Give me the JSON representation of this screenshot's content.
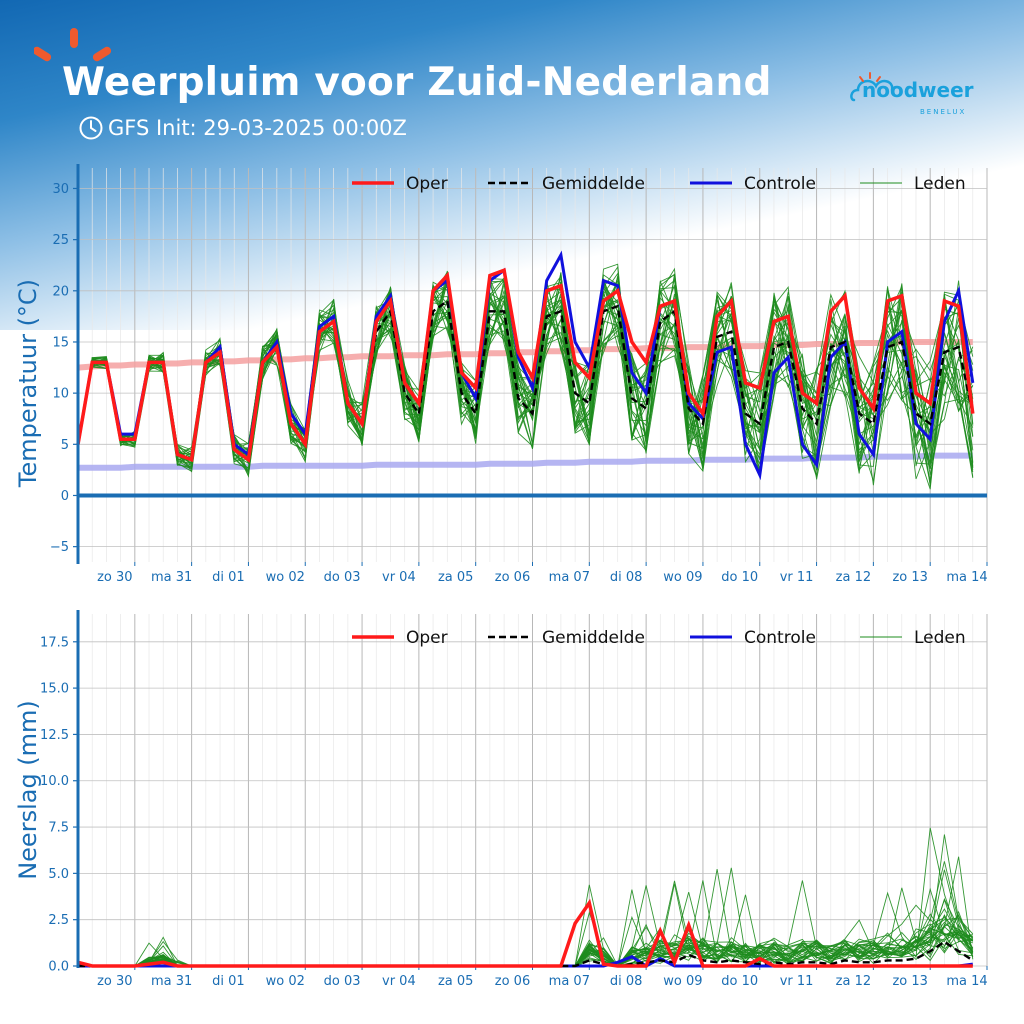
{
  "header": {
    "title": "Weerpluim voor Zuid-Nederland",
    "subtitle": "GFS Init: 29-03-2025 00:00Z",
    "icons": [
      "sun-logo-icon",
      "clock-icon",
      "noodweer-cloud-icon"
    ]
  },
  "brand": {
    "name": "noodweer",
    "sub": "BENELUX"
  },
  "colors": {
    "oper": "#ff1a1a",
    "mean": "#000000",
    "control": "#1010dd",
    "members": "#1e8c1e",
    "climate_max": "#f4a0a0",
    "climate_min": "#a8a8f0",
    "axis": "#1a6db3"
  },
  "chart_data": [
    {
      "type": "line",
      "ylabel": "Temperatuur (°C)",
      "ylim": [
        -6.5,
        32
      ],
      "yticks": [
        -5,
        0,
        5,
        10,
        15,
        20,
        25,
        30
      ],
      "xlim": [
        0,
        64
      ],
      "xtick_pos": [
        4,
        8,
        12,
        16,
        20,
        24,
        28,
        32,
        36,
        40,
        44,
        48,
        52,
        56,
        60,
        64
      ],
      "day_labels": [
        "zo 30",
        "ma 31",
        "di 01",
        "wo 02",
        "do 03",
        "vr 04",
        "za 05",
        "zo 06",
        "ma 07",
        "di 08",
        "wo 09",
        "do 10",
        "vr 11",
        "za 12",
        "zo 13",
        "ma 14"
      ],
      "x_step_hours": 6,
      "grid": true,
      "zero_line": true,
      "legend": [
        "Oper",
        "Gemiddelde",
        "Controle",
        "Leden"
      ],
      "legend_placement": "top-right",
      "series": [
        {
          "name": "Oper",
          "values": [
            5,
            13,
            13,
            5.5,
            5.5,
            13,
            13,
            4,
            3.5,
            13,
            14,
            4.5,
            3.5,
            13,
            14.5,
            7,
            5,
            16,
            17,
            9,
            7,
            17,
            19,
            11,
            9,
            20,
            21.5,
            12,
            10.5,
            21.5,
            22,
            14,
            11.5,
            20,
            20.5,
            13,
            11.5,
            19,
            20,
            15,
            13,
            18.5,
            19,
            10,
            8,
            17.5,
            19,
            11,
            10.5,
            17,
            17.5,
            10,
            9,
            18,
            19.5,
            10.5,
            8.5,
            19,
            19.5,
            10,
            9,
            19,
            18.5,
            8
          ]
        },
        {
          "name": "Gemiddelde",
          "values": [
            5,
            13,
            13,
            5.5,
            5.5,
            13,
            13,
            4,
            3.5,
            13,
            14,
            4.5,
            3.5,
            13,
            14.5,
            7,
            5,
            16,
            17,
            9,
            7,
            16,
            18,
            10,
            8,
            18,
            19,
            10,
            8,
            18,
            18,
            9.5,
            8,
            17.5,
            18,
            10,
            9,
            18,
            18.5,
            9.5,
            8.5,
            17,
            18,
            8.5,
            7,
            15.5,
            16,
            8,
            7,
            14.5,
            15,
            8.5,
            7,
            14.5,
            15,
            8,
            7,
            14.5,
            15,
            8,
            7,
            14,
            14.5,
            8
          ]
        },
        {
          "name": "Controle",
          "values": [
            5,
            13,
            13,
            6,
            6,
            13,
            13,
            4,
            3.5,
            13,
            14.5,
            5,
            4,
            13,
            15,
            8,
            6,
            16.5,
            17.5,
            9,
            7,
            17.5,
            19.5,
            11,
            9,
            20,
            21,
            12,
            9.5,
            21,
            22,
            13.5,
            10.5,
            21,
            23.5,
            15,
            12.5,
            21,
            20.5,
            12,
            10,
            18.5,
            19,
            9,
            7.5,
            14,
            14.5,
            5,
            2,
            12,
            13.5,
            5,
            3,
            13.5,
            15,
            6,
            4,
            15,
            16,
            7,
            5.5,
            17,
            20,
            11
          ]
        },
        {
          "name": "Climate max",
          "values": [
            12.5,
            12.6,
            12.7,
            12.7,
            12.8,
            12.8,
            12.9,
            12.9,
            13,
            13,
            13.1,
            13.1,
            13.2,
            13.2,
            13.3,
            13.3,
            13.4,
            13.4,
            13.5,
            13.5,
            13.6,
            13.6,
            13.6,
            13.7,
            13.7,
            13.7,
            13.8,
            13.8,
            13.8,
            13.9,
            13.9,
            14,
            14,
            14.1,
            14.1,
            14.2,
            14.2,
            14.3,
            14.3,
            14.3,
            14.4,
            14.4,
            14.4,
            14.5,
            14.5,
            14.5,
            14.6,
            14.6,
            14.6,
            14.7,
            14.7,
            14.7,
            14.8,
            14.8,
            14.8,
            14.9,
            14.9,
            14.9,
            15,
            15,
            15,
            15,
            15,
            15
          ]
        },
        {
          "name": "Climate min",
          "values": [
            2.7,
            2.7,
            2.7,
            2.7,
            2.8,
            2.8,
            2.8,
            2.8,
            2.8,
            2.8,
            2.8,
            2.8,
            2.8,
            2.9,
            2.9,
            2.9,
            2.9,
            2.9,
            2.9,
            2.9,
            2.9,
            3,
            3,
            3,
            3,
            3,
            3,
            3,
            3,
            3.1,
            3.1,
            3.1,
            3.1,
            3.2,
            3.2,
            3.2,
            3.3,
            3.3,
            3.3,
            3.3,
            3.4,
            3.4,
            3.4,
            3.4,
            3.5,
            3.5,
            3.5,
            3.5,
            3.6,
            3.6,
            3.6,
            3.6,
            3.7,
            3.7,
            3.7,
            3.7,
            3.8,
            3.8,
            3.8,
            3.8,
            3.9,
            3.9,
            3.9,
            3.9
          ]
        }
      ]
    },
    {
      "type": "line",
      "ylabel": "Neerslag (mm)",
      "ylim": [
        0,
        19
      ],
      "yticks": [
        0,
        2.5,
        5,
        7.5,
        10,
        12.5,
        15,
        17.5
      ],
      "ytick_labels": [
        "0.0",
        "2.5",
        "5.0",
        "7.5",
        "10.0",
        "12.5",
        "15.0",
        "17.5"
      ],
      "xlim": [
        0,
        64
      ],
      "xtick_pos": [
        4,
        8,
        12,
        16,
        20,
        24,
        28,
        32,
        36,
        40,
        44,
        48,
        52,
        56,
        60,
        64
      ],
      "day_labels": [
        "zo 30",
        "ma 31",
        "di 01",
        "wo 02",
        "do 03",
        "vr 04",
        "za 05",
        "zo 06",
        "ma 07",
        "di 08",
        "wo 09",
        "do 10",
        "vr 11",
        "za 12",
        "zo 13",
        "ma 14"
      ],
      "x_step_hours": 6,
      "grid": true,
      "legend": [
        "Oper",
        "Gemiddelde",
        "Controle",
        "Leden"
      ],
      "legend_placement": "top-right",
      "series": [
        {
          "name": "Oper",
          "values": [
            0.2,
            0,
            0,
            0,
            0,
            0.1,
            0.2,
            0,
            0,
            0,
            0,
            0,
            0,
            0,
            0,
            0,
            0,
            0,
            0,
            0,
            0,
            0,
            0,
            0,
            0,
            0,
            0,
            0,
            0,
            0,
            0,
            0,
            0,
            0,
            0,
            2.3,
            3.4,
            0.1,
            0,
            0,
            0,
            1.9,
            0.2,
            2.2,
            0,
            0,
            0,
            0,
            0.4,
            0,
            0,
            0,
            0,
            0,
            0,
            0,
            0,
            0,
            0,
            0,
            0,
            0,
            0,
            0
          ]
        },
        {
          "name": "Gemiddelde",
          "values": [
            0,
            0,
            0,
            0,
            0,
            0.1,
            0.2,
            0,
            0,
            0,
            0,
            0,
            0,
            0,
            0,
            0,
            0,
            0,
            0,
            0,
            0,
            0,
            0,
            0,
            0,
            0,
            0,
            0,
            0,
            0,
            0,
            0,
            0,
            0,
            0,
            0,
            0.3,
            0.1,
            0,
            0.1,
            0.2,
            0.3,
            0.2,
            0.6,
            0.3,
            0.2,
            0.3,
            0.2,
            0.1,
            0.2,
            0.1,
            0.2,
            0.2,
            0.1,
            0.3,
            0.2,
            0.2,
            0.3,
            0.3,
            0.4,
            0.8,
            1.3,
            0.8,
            0.3
          ]
        },
        {
          "name": "Controle",
          "values": [
            0,
            0,
            0,
            0,
            0,
            0,
            0,
            0,
            0,
            0,
            0,
            0,
            0,
            0,
            0,
            0,
            0,
            0,
            0,
            0,
            0,
            0,
            0,
            0,
            0,
            0,
            0,
            0,
            0,
            0,
            0,
            0,
            0,
            0,
            0,
            0,
            0,
            0,
            0.2,
            0.5,
            0,
            0.4,
            0,
            0,
            0,
            0,
            0,
            0,
            0,
            0,
            0,
            0,
            0,
            0,
            0,
            0,
            0,
            0,
            0,
            0,
            0,
            0,
            0,
            0.1
          ]
        }
      ]
    }
  ]
}
